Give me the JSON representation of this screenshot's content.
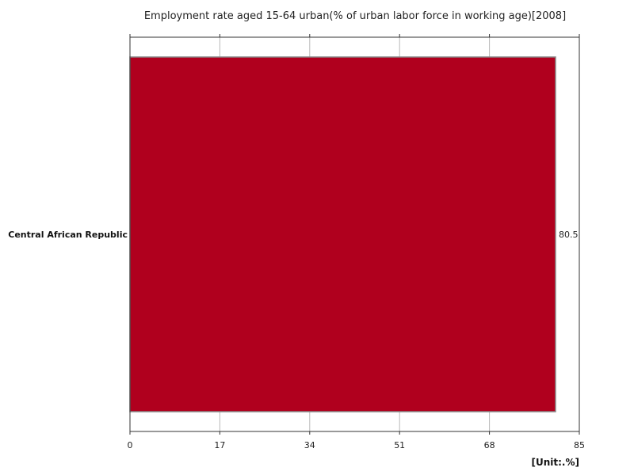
{
  "chart_data": {
    "type": "bar",
    "orientation": "horizontal",
    "title": "Employment rate aged 15-64 urban(% of urban labor force in working age)[2008]",
    "categories": [
      "Central African Republic"
    ],
    "values": [
      80.5
    ],
    "value_labels": [
      "80.5"
    ],
    "xlim": [
      0,
      85
    ],
    "xticks": [
      0,
      17,
      34,
      51,
      68,
      85
    ],
    "xtick_labels": [
      "0",
      "17",
      "34",
      "51",
      "68",
      "85"
    ],
    "unit_label": "[Unit:.%]",
    "bar_color": "#b0001e",
    "grid": true,
    "legend": "none"
  }
}
